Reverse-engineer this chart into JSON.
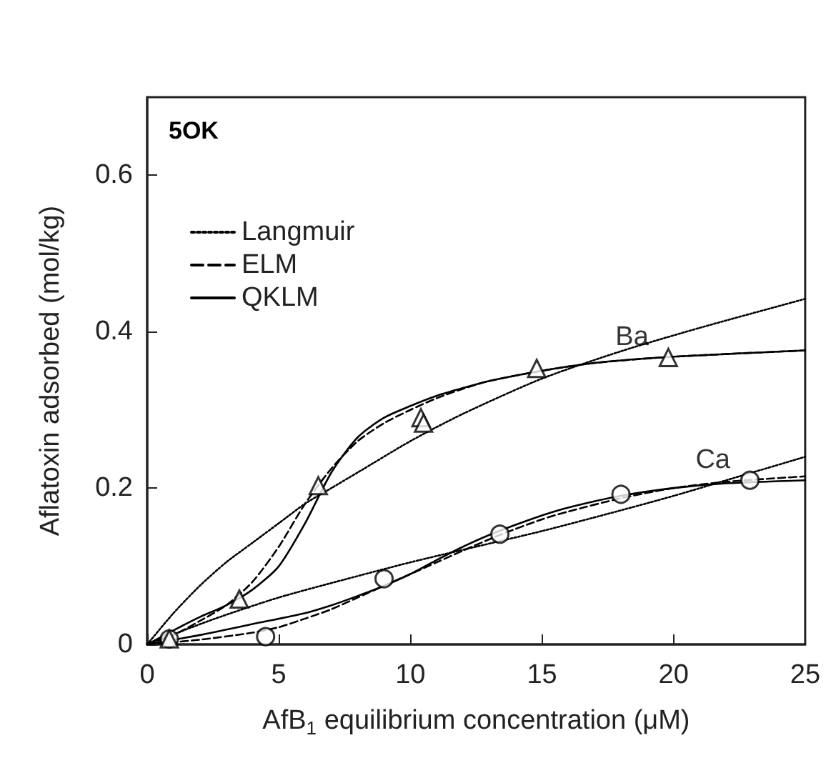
{
  "chart_data": {
    "type": "line",
    "title": "5OK",
    "xlabel": "AfB$_{1}$ equilibrium concentration (μM)",
    "ylabel": "Aflatoxin adsorbed (mol/kg)",
    "xlim": [
      0,
      25
    ],
    "xticks": [
      0,
      5,
      10,
      15,
      20,
      25
    ],
    "ylim": [
      0,
      0.7
    ],
    "yticks": [
      0,
      0.2,
      0.4,
      0.6
    ],
    "grid": false,
    "legend": "top left",
    "series": [
      {
        "name": "Langmuir",
        "color": "#000000",
        "line_style": "dotted",
        "marker": "none",
        "x": [
          0,
          1,
          2,
          3,
          4,
          5,
          6,
          7,
          8,
          10,
          12,
          15,
          18,
          21,
          25
        ],
        "values": [
          0,
          0.04,
          0.075,
          0.105,
          0.13,
          0.155,
          0.18,
          0.2,
          0.22,
          0.26,
          0.295,
          0.34,
          0.375,
          0.405,
          0.442
        ]
      },
      {
        "name": "ELM",
        "color": "#000000",
        "line_style": "dashed",
        "marker": "none",
        "x": [
          0,
          1,
          2,
          3,
          4,
          5,
          6,
          7,
          8,
          9,
          10,
          11,
          12,
          13,
          15,
          17,
          20,
          25
        ],
        "values": [
          0,
          0.012,
          0.03,
          0.05,
          0.08,
          0.125,
          0.18,
          0.225,
          0.26,
          0.283,
          0.3,
          0.315,
          0.327,
          0.337,
          0.35,
          0.36,
          0.368,
          0.376
        ]
      },
      {
        "name": "QKLM",
        "color": "#000000",
        "line_style": "solid",
        "marker": "none",
        "x": [
          0,
          1,
          2,
          3,
          4,
          5,
          6,
          7,
          8,
          9,
          10,
          11,
          12,
          13,
          15,
          17,
          20,
          25
        ],
        "values": [
          0,
          0.018,
          0.035,
          0.05,
          0.07,
          0.1,
          0.155,
          0.22,
          0.265,
          0.29,
          0.305,
          0.318,
          0.328,
          0.337,
          0.35,
          0.36,
          0.368,
          0.376
        ]
      },
      {
        "color": "#000000",
        "line_style": "dotted",
        "marker": "none",
        "x": [
          0,
          2.5,
          5,
          7.5,
          10,
          12.5,
          15,
          17.5,
          20,
          22.5,
          25
        ],
        "values": [
          0,
          0.032,
          0.06,
          0.083,
          0.105,
          0.125,
          0.145,
          0.167,
          0.19,
          0.215,
          0.24
        ]
      },
      {
        "color": "#000000",
        "line_style": "dashed",
        "marker": "none",
        "x": [
          0,
          2,
          4,
          5,
          6,
          7,
          8,
          9,
          10,
          11,
          12,
          13.4,
          15,
          16,
          18,
          20,
          22,
          25
        ],
        "values": [
          0,
          0.006,
          0.015,
          0.022,
          0.033,
          0.045,
          0.06,
          0.075,
          0.09,
          0.105,
          0.12,
          0.14,
          0.16,
          0.17,
          0.187,
          0.2,
          0.208,
          0.215
        ]
      },
      {
        "color": "#000000",
        "line_style": "solid",
        "marker": "none",
        "x": [
          0,
          2,
          4,
          6,
          7,
          8,
          9,
          10,
          11,
          12,
          13,
          14,
          15,
          16,
          18,
          20,
          22,
          25
        ],
        "values": [
          0,
          0.012,
          0.026,
          0.04,
          0.05,
          0.062,
          0.075,
          0.09,
          0.108,
          0.125,
          0.14,
          0.153,
          0.165,
          0.175,
          0.19,
          0.2,
          0.206,
          0.21
        ]
      },
      {
        "name": "Ca",
        "type": "scatter",
        "color": "#000000",
        "marker": "circle",
        "x": [
          0.84,
          4.5,
          9.0,
          13.4,
          18.0,
          22.9
        ],
        "values": [
          0.007,
          0.01,
          0.084,
          0.141,
          0.192,
          0.21
        ]
      },
      {
        "name": "Ba",
        "type": "scatter",
        "color": "#000000",
        "marker": "triangle",
        "x": [
          0.84,
          3.5,
          6.5,
          10.4,
          10.5,
          14.8,
          19.8
        ],
        "values": [
          0.007,
          0.058,
          0.203,
          0.29,
          0.283,
          0.353,
          0.367
        ]
      }
    ]
  }
}
